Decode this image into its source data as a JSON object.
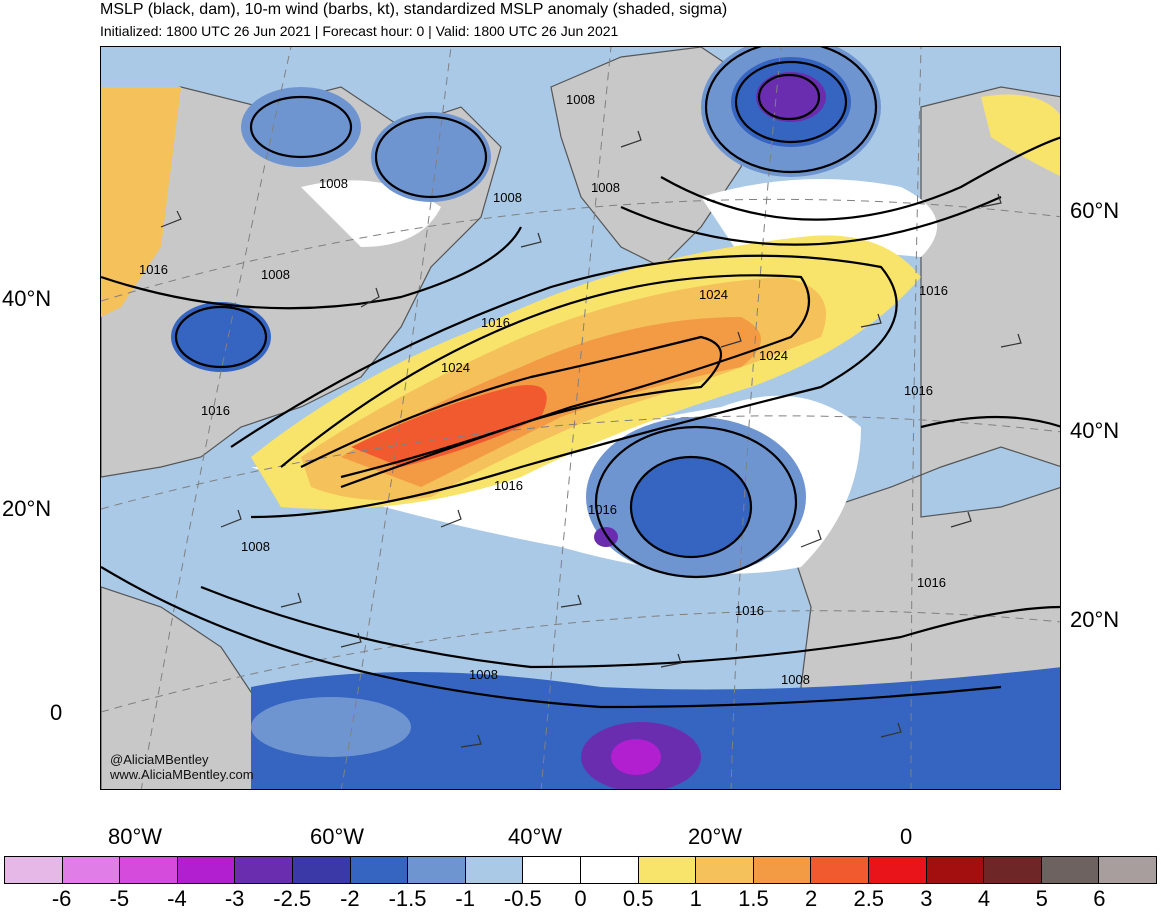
{
  "header": {
    "title": "MSLP (black, dam), 10-m wind (barbs, kt), standardized MSLP anomaly (shaded, sigma)",
    "subtitle": "Initialized: 1800 UTC 26 Jun 2021 | Forecast hour: 0 | Valid: 1800 UTC 26 Jun 2021"
  },
  "lat_labels_left": [
    "40°N",
    "20°N",
    "0"
  ],
  "lat_labels_right": [
    "60°N",
    "40°N",
    "20°N"
  ],
  "lon_labels": [
    "80°W",
    "60°W",
    "40°W",
    "20°W",
    "0"
  ],
  "isobar_labels": [
    "1008",
    "1008",
    "1008",
    "1008",
    "1016",
    "1008",
    "1016",
    "1024",
    "1016",
    "1024",
    "1016",
    "1024",
    "1016",
    "1016",
    "1016",
    "1008",
    "1016",
    "1016",
    "1008",
    "1008"
  ],
  "credit": {
    "handle": "@AliciaMBentley",
    "website": "www.AliciaMBentley.com"
  },
  "colorbar": {
    "ticks": [
      "-6",
      "-5",
      "-4",
      "-3",
      "-2.5",
      "-2",
      "-1.5",
      "-1",
      "-0.5",
      "0",
      "0.5",
      "1",
      "1.5",
      "2",
      "2.5",
      "3",
      "4",
      "5",
      "6"
    ],
    "colors": [
      "#e6b8e8",
      "#e07de6",
      "#d54bdc",
      "#b11fd0",
      "#6a2db0",
      "#3b38a8",
      "#3565c0",
      "#6f95d1",
      "#a9c9e6",
      "#ffffff",
      "#ffffff",
      "#f9e46b",
      "#f5c15a",
      "#f39a45",
      "#f05a2e",
      "#e8141a",
      "#a30f0f",
      "#6e2626",
      "#6e6260",
      "#a89e9e"
    ]
  },
  "colors": {
    "land": "#c8c8c8",
    "ocean_neutral": "#ffffff",
    "coast": "#555555",
    "isobar": "#000000",
    "grid": "#808080"
  }
}
